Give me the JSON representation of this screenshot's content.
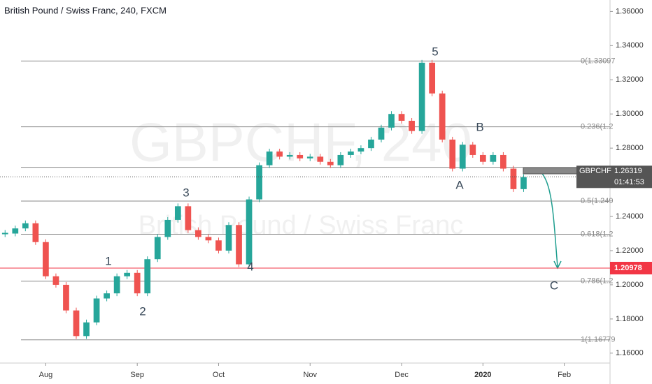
{
  "chart_data": {
    "type": "candlestick",
    "title": "British Pound / Swiss Franc, 240, FXCM",
    "watermark": "GBPCHF, 240",
    "watermark_subtitle": "British Pound / Swiss Franc",
    "categories": [
      null,
      null,
      null,
      null,
      "Aug",
      null,
      null,
      null,
      null,
      null,
      null,
      null,
      null,
      "Sep",
      null,
      null,
      null,
      null,
      null,
      null,
      null,
      "Oct",
      null,
      null,
      null,
      null,
      null,
      null,
      null,
      null,
      "Nov",
      null,
      null,
      null,
      null,
      null,
      null,
      null,
      null,
      "Dec",
      null,
      null,
      null,
      null,
      null,
      null,
      null,
      "2020",
      null,
      null,
      null,
      null,
      null,
      null,
      null,
      "Feb",
      null,
      null,
      null,
      null
    ],
    "values": [
      1.23,
      1.233,
      1.236,
      1.225,
      1.205,
      1.2,
      1.185,
      1.17,
      1.178,
      1.192,
      1.195,
      1.205,
      1.207,
      1.195,
      1.215,
      1.228,
      1.238,
      1.246,
      1.232,
      1.228,
      1.226,
      1.22,
      1.235,
      1.212,
      1.25,
      1.27,
      1.278,
      1.275,
      1.276,
      1.274,
      1.275,
      1.272,
      1.27,
      1.276,
      1.278,
      1.28,
      1.285,
      1.292,
      1.3,
      1.296,
      1.29,
      1.33,
      1.312,
      1.285,
      1.268,
      1.282,
      1.276,
      1.272,
      1.276,
      1.268,
      1.256,
      1.263,
      null,
      null,
      null,
      null,
      null,
      null,
      null,
      null
    ],
    "up_color": "#26a69a",
    "down_color": "#ef5350",
    "ylim": [
      1.1542,
      1.3667
    ],
    "yticks": [
      {
        "value": 1.36,
        "label": "1.36000"
      },
      {
        "value": 1.34,
        "label": "1.34000"
      },
      {
        "value": 1.32,
        "label": "1.32000"
      },
      {
        "value": 1.3,
        "label": "1.30000"
      },
      {
        "value": 1.28,
        "label": "1.28000"
      },
      {
        "value": 1.26,
        "label": "1.26000"
      },
      {
        "value": 1.24,
        "label": "1.24000"
      },
      {
        "value": 1.22,
        "label": "1.22000"
      },
      {
        "value": 1.2,
        "label": "1.20000"
      },
      {
        "value": 1.18,
        "label": "1.18000"
      },
      {
        "value": 1.16,
        "label": "1.16000"
      }
    ],
    "fib_levels": [
      {
        "value": 1.33097,
        "label": "0(1.33097"
      },
      {
        "value": 1.2925,
        "label": "0.236(1.2"
      },
      {
        "value": 1.2688
      },
      {
        "value": 1.249,
        "label": "0.5(1.249"
      },
      {
        "value": 1.2296,
        "label": "0.618(1.2"
      },
      {
        "value": 1.2021,
        "label": "0.786(1.2"
      },
      {
        "value": 1.16779,
        "label": "1(1.16779"
      }
    ],
    "symbol": "GBPCHF",
    "last_price": 1.26319,
    "countdown": "01:41:53",
    "target_level": 1.20978,
    "wave_labels": [
      "1",
      "2",
      "3",
      "4",
      "5",
      "A",
      "B",
      "C"
    ]
  }
}
